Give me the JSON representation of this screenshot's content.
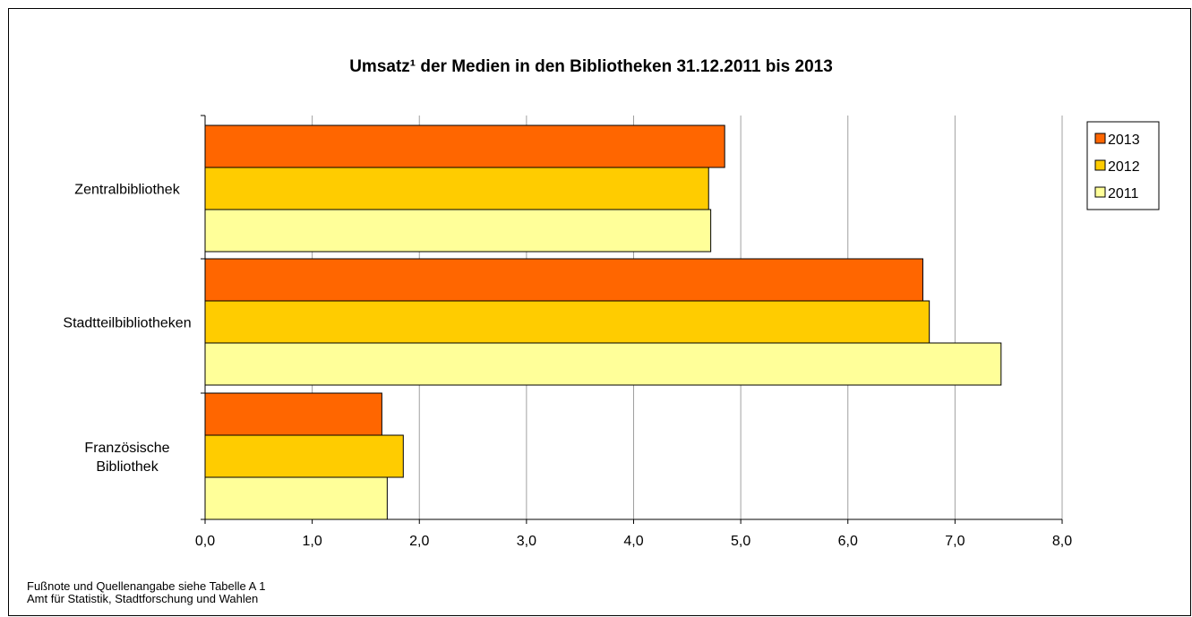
{
  "chart_data": {
    "type": "bar",
    "orientation": "horizontal",
    "title": "Umsatz¹ der Medien in den Bibliotheken 31.12.2011 bis 2013",
    "categories": [
      "Zentralbibliothek",
      "Stadtteilbibliotheken",
      "Französische Bibliothek"
    ],
    "category_lines": [
      [
        "Zentralbibliothek"
      ],
      [
        "Stadtteilbibliotheken"
      ],
      [
        "Französische",
        "Bibliothek"
      ]
    ],
    "series": [
      {
        "name": "2013",
        "color": "#ff6600",
        "values": [
          4.85,
          6.7,
          1.65
        ]
      },
      {
        "name": "2012",
        "color": "#ffcc00",
        "values": [
          4.7,
          6.76,
          1.85
        ]
      },
      {
        "name": "2011",
        "color": "#ffff99",
        "values": [
          4.72,
          7.43,
          1.7
        ]
      }
    ],
    "xlim": [
      0,
      8
    ],
    "xticks": [
      0,
      1,
      2,
      3,
      4,
      5,
      6,
      7,
      8
    ],
    "xtick_labels": [
      "0,0",
      "1,0",
      "2,0",
      "3,0",
      "4,0",
      "5,0",
      "6,0",
      "7,0",
      "8,0"
    ],
    "xlabel": "",
    "ylabel": "",
    "grid": "vertical",
    "legend": "right"
  },
  "footnotes": {
    "line1": "Fußnote und Quellenangabe siehe Tabelle A 1",
    "line2": "Amt für Statistik, Stadtforschung und Wahlen"
  }
}
